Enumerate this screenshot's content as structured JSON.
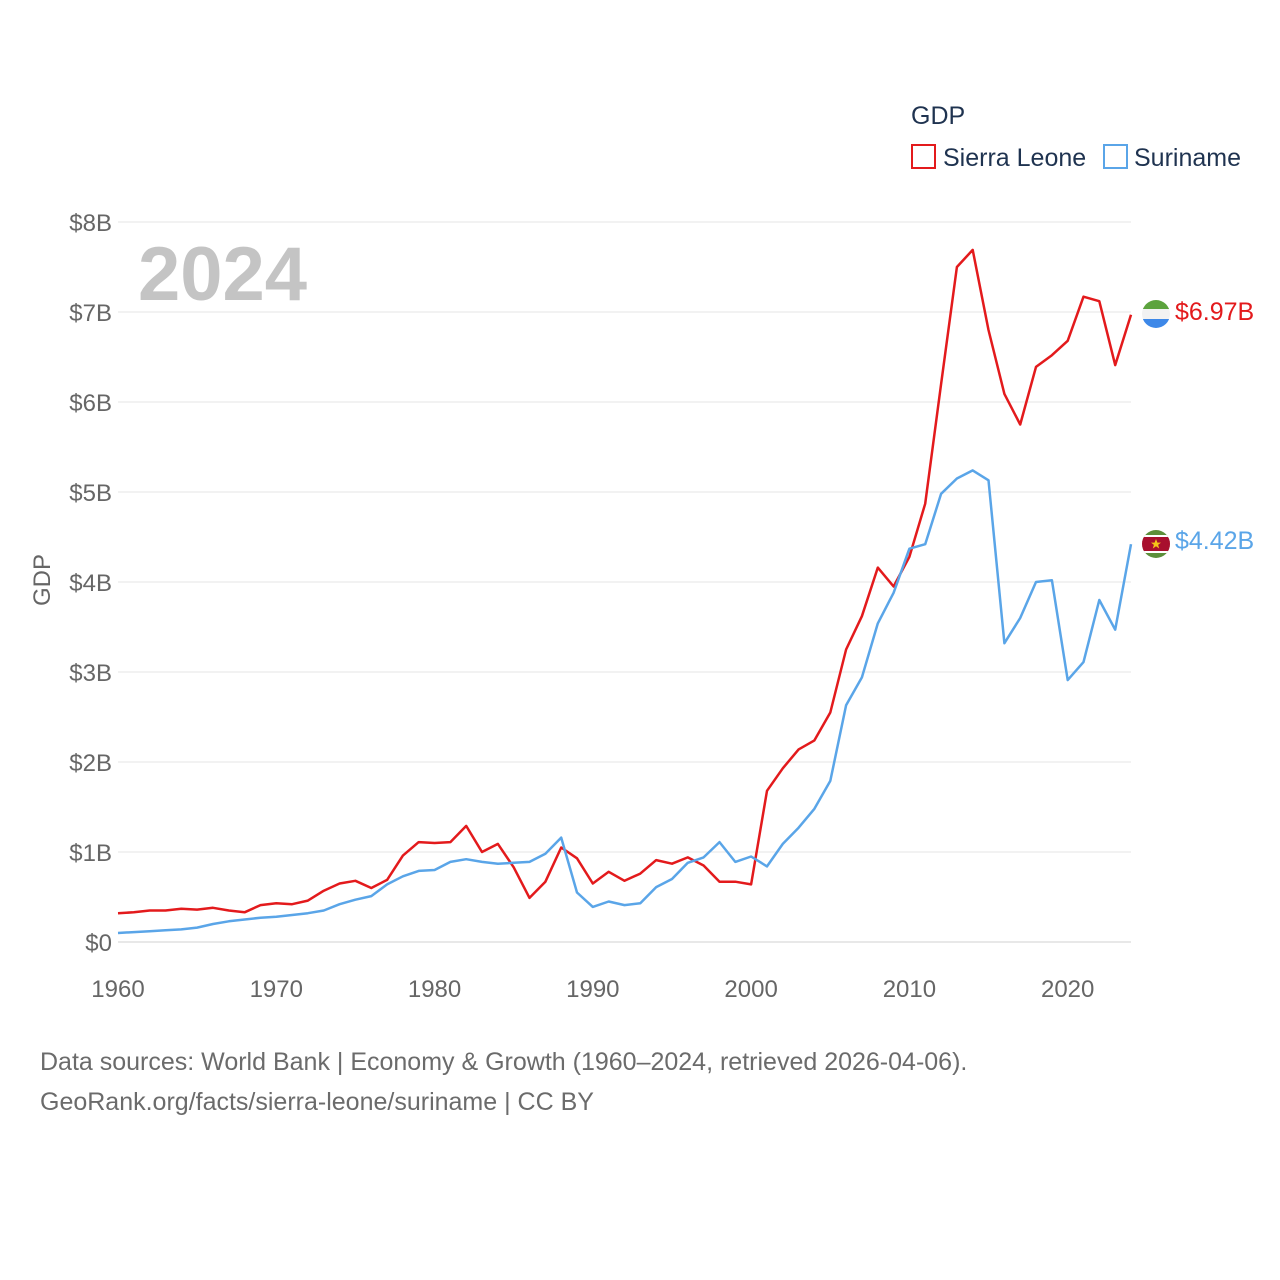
{
  "chart_data": {
    "type": "line",
    "legend_title": "GDP",
    "ylabel": "GDP",
    "xlabel": "",
    "year_label": "2024",
    "xlim": [
      1960,
      2024
    ],
    "ylim": [
      0,
      8
    ],
    "x_ticks": [
      "1960",
      "1970",
      "1980",
      "1990",
      "2000",
      "2010",
      "2020"
    ],
    "y_ticks": [
      "$0",
      "$1B",
      "$2B",
      "$3B",
      "$4B",
      "$5B",
      "$6B",
      "$7B",
      "$8B"
    ],
    "x": [
      1960,
      1961,
      1962,
      1963,
      1964,
      1965,
      1966,
      1967,
      1968,
      1969,
      1970,
      1971,
      1972,
      1973,
      1974,
      1975,
      1976,
      1977,
      1978,
      1979,
      1980,
      1981,
      1982,
      1983,
      1984,
      1985,
      1986,
      1987,
      1988,
      1989,
      1990,
      1991,
      1992,
      1993,
      1994,
      1995,
      1996,
      1997,
      1998,
      1999,
      2000,
      2001,
      2002,
      2003,
      2004,
      2005,
      2006,
      2007,
      2008,
      2009,
      2010,
      2011,
      2012,
      2013,
      2014,
      2015,
      2016,
      2017,
      2018,
      2019,
      2020,
      2021,
      2022,
      2023,
      2024
    ],
    "series": [
      {
        "name": "Sierra Leone",
        "color": "#e31a1c",
        "end_label": "$6.97B",
        "values": [
          0.32,
          0.33,
          0.35,
          0.35,
          0.37,
          0.36,
          0.38,
          0.35,
          0.33,
          0.41,
          0.43,
          0.42,
          0.46,
          0.57,
          0.65,
          0.68,
          0.6,
          0.69,
          0.96,
          1.11,
          1.1,
          1.11,
          1.29,
          1.0,
          1.09,
          0.83,
          0.49,
          0.67,
          1.05,
          0.93,
          0.65,
          0.78,
          0.68,
          0.76,
          0.91,
          0.87,
          0.94,
          0.85,
          0.67,
          0.67,
          0.64,
          1.68,
          1.93,
          2.14,
          2.24,
          2.55,
          3.25,
          3.62,
          4.16,
          3.95,
          4.28,
          4.87,
          6.2,
          7.5,
          7.69,
          6.8,
          6.09,
          5.75,
          6.39,
          6.52,
          6.68,
          7.17,
          7.12,
          6.41,
          6.97
        ]
      },
      {
        "name": "Suriname",
        "color": "#5aa5e8",
        "end_label": "$4.42B",
        "values": [
          0.1,
          0.11,
          0.12,
          0.13,
          0.14,
          0.16,
          0.2,
          0.23,
          0.25,
          0.27,
          0.28,
          0.3,
          0.32,
          0.35,
          0.42,
          0.47,
          0.51,
          0.64,
          0.73,
          0.79,
          0.8,
          0.89,
          0.92,
          0.89,
          0.87,
          0.88,
          0.89,
          0.98,
          1.16,
          0.55,
          0.39,
          0.45,
          0.41,
          0.43,
          0.61,
          0.7,
          0.88,
          0.94,
          1.11,
          0.89,
          0.95,
          0.84,
          1.09,
          1.27,
          1.48,
          1.79,
          2.63,
          2.94,
          3.54,
          3.88,
          4.37,
          4.42,
          4.98,
          5.15,
          5.24,
          5.13,
          3.32,
          3.6,
          4.0,
          4.02,
          2.91,
          3.11,
          3.8,
          3.47,
          4.42
        ]
      }
    ]
  },
  "footer": {
    "line1": "Data sources: World Bank | Economy & Growth (1960–2024, retrieved 2026-04-06).",
    "line2": "GeoRank.org/facts/sierra-leone/suriname | CC BY"
  }
}
